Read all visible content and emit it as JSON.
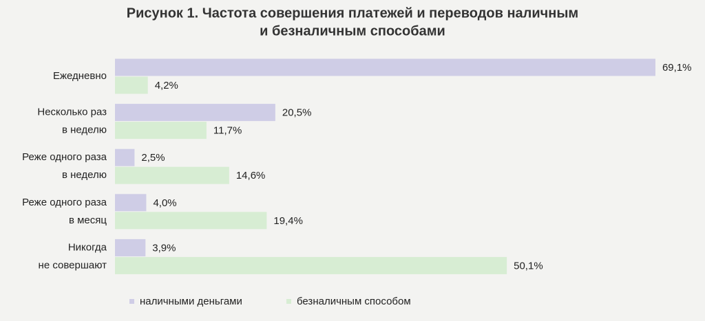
{
  "chart_data": {
    "type": "bar",
    "orientation": "horizontal",
    "title": [
      "Рисунок 1. Частота совершения платежей и переводов наличным",
      "и безналичным способами"
    ],
    "categories": [
      [
        "Ежедневно"
      ],
      [
        "Несколько раз",
        "в неделю"
      ],
      [
        "Реже одного раза",
        "в неделю"
      ],
      [
        "Реже одного раза",
        "в месяц"
      ],
      [
        "Никогда",
        "не совершают"
      ]
    ],
    "series": [
      {
        "name": "наличными деньгами",
        "color": "#cfcde6",
        "values": [
          69.1,
          20.5,
          2.5,
          4.0,
          3.9
        ],
        "value_labels": [
          "69,1%",
          "20,5%",
          "2,5%",
          "4,0%",
          "3,9%"
        ]
      },
      {
        "name": "безналичным способом",
        "color": "#d7edd3",
        "values": [
          4.2,
          11.7,
          14.6,
          19.4,
          50.1
        ],
        "value_labels": [
          "4,2%",
          "11,7%",
          "14,6%",
          "19,4%",
          "50,1%"
        ]
      }
    ],
    "legend": "bottom"
  }
}
